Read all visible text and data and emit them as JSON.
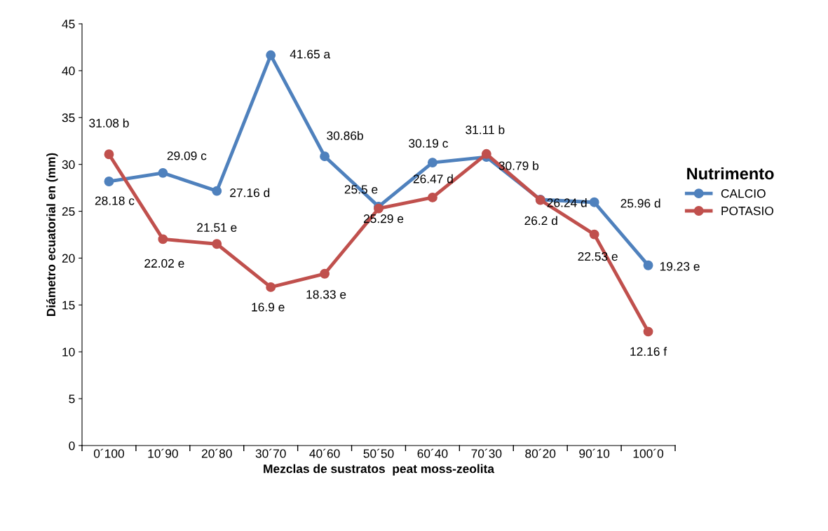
{
  "chart_data": {
    "type": "line",
    "xlabel": "Mezclas de sustratos  peat moss-zeolita",
    "ylabel": "Diámetro ecuatorial en (mm)",
    "legend_title": "Nutrimento",
    "legend": "right",
    "marker": "circle",
    "line_style": "solid",
    "grid": false,
    "categories": [
      "0´100",
      "10´90",
      "20´80",
      "30´70",
      "40´60",
      "50´50",
      "60´40",
      "70´30",
      "80´20",
      "90´10",
      "100´0"
    ],
    "ylim": [
      0,
      45
    ],
    "yticks": [
      0,
      5,
      10,
      15,
      20,
      25,
      30,
      35,
      40,
      45
    ],
    "series": [
      {
        "name": "CALCIO",
        "color": "#4f81bd",
        "values": [
          28.18,
          29.09,
          27.16,
          41.65,
          30.86,
          25.5,
          30.19,
          30.79,
          26.24,
          25.96,
          19.23
        ],
        "value_labels": [
          "28.18 c",
          "29.09 c",
          "27.16 d",
          "41.65 a",
          "30.86b",
          "25.5 e",
          "30.19 c",
          "30.79 b",
          "26.24 d",
          "25.96 d",
          "19.23 e"
        ]
      },
      {
        "name": "POTASIO",
        "color": "#c0504d",
        "values": [
          31.08,
          22.02,
          21.51,
          16.9,
          18.33,
          25.29,
          26.47,
          31.11,
          26.2,
          22.53,
          12.16
        ],
        "value_labels": [
          "31.08 b",
          "22.02 e",
          "21.51 e",
          "16.9 e",
          "18.33 e",
          "25.29 e",
          "26.47 d",
          "31.11 b",
          "26.2 d",
          "22.53 e",
          "12.16 f"
        ]
      }
    ]
  }
}
